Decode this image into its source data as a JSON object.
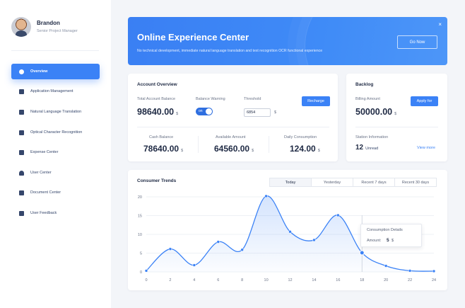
{
  "profile": {
    "name": "Brandon",
    "role": "Senior Project Manager"
  },
  "nav": [
    {
      "label": "Overview",
      "icon": "overview-icon",
      "active": true
    },
    {
      "label": "Application Management",
      "icon": "grid-icon"
    },
    {
      "label": "Natural Language Translation",
      "icon": "translate-icon"
    },
    {
      "label": "Optical Character Recognition",
      "icon": "ocr-icon"
    },
    {
      "label": "Expense Center",
      "icon": "chart-icon"
    },
    {
      "label": "User Center",
      "icon": "user-icon"
    },
    {
      "label": "Document Center",
      "icon": "document-icon"
    },
    {
      "label": "User Feedback",
      "icon": "feedback-icon"
    }
  ],
  "banner": {
    "title": "Online Experience Center",
    "subtitle": "No technical development, immediate natural language translation and text recognition OCR functional experience",
    "button": "Go Now",
    "close": "×"
  },
  "account": {
    "title": "Account Overview",
    "total_label": "Total Account Balance",
    "total_value": "98640.00",
    "unit": "$",
    "warning_label": "Balance Warning",
    "toggle_text": "on",
    "threshold_label": "Threshold",
    "threshold_value": "6854",
    "recharge": "Recharge",
    "cash_label": "Cash Balance",
    "cash_value": "78640.00",
    "available_label": "Available Amount",
    "available_value": "64560.00",
    "daily_label": "Daily Consumption",
    "daily_value": "124.00"
  },
  "backlog": {
    "title": "Backlog",
    "billing_label": "Billing Amount",
    "billing_value": "50000.00",
    "unit": "$",
    "apply": "Apply for",
    "station_label": "Station Information",
    "unread_count": "12",
    "unread_label": "Unread",
    "view_more": "View more"
  },
  "trends": {
    "title": "Consumer Trends",
    "tabs": [
      "Today",
      "Yesterday",
      "Recent 7 days",
      "Recent 30 days"
    ],
    "active_tab": 0,
    "tooltip_title": "Consumption Details",
    "tooltip_label": "Amount:",
    "tooltip_value": "5",
    "tooltip_unit": "$"
  },
  "chart_data": {
    "type": "line",
    "x": [
      0,
      2,
      4,
      6,
      8,
      10,
      12,
      14,
      16,
      18,
      20,
      22,
      24
    ],
    "values": [
      0.3,
      6.1,
      1.8,
      8,
      5.9,
      20.2,
      10.7,
      8.5,
      15.1,
      5.1,
      1.6,
      0.3,
      0.2
    ],
    "xticks": [
      0,
      2,
      4,
      6,
      8,
      10,
      12,
      14,
      16,
      18,
      20,
      22,
      24
    ],
    "yticks": [
      0,
      5,
      10,
      15,
      20
    ],
    "ylim": [
      0,
      20
    ],
    "highlight_index": 9,
    "grid": true,
    "line_color": "#3b82f6"
  }
}
